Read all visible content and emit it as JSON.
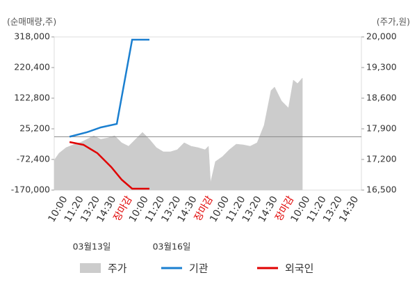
{
  "chart_data": {
    "type": "line",
    "y_axis_title": "(순매매량,주)",
    "y2_axis_title": "(주가,원)",
    "categories": [
      "10:00",
      "11:20",
      "13:20",
      "14:30",
      "장마감",
      "10:00",
      "11:20",
      "13:20",
      "14:30",
      "장마감",
      "10:00",
      "11:20",
      "13:20",
      "14:30",
      "장마감",
      "10:00",
      "11:20",
      "13:20",
      "14:30"
    ],
    "category_colors": [
      "#333",
      "#333",
      "#333",
      "#333",
      "#e00000",
      "#333",
      "#333",
      "#333",
      "#333",
      "#e00000",
      "#333",
      "#333",
      "#333",
      "#333",
      "#e00000",
      "#333",
      "#333",
      "#333",
      "#333"
    ],
    "dates": [
      "03월13일",
      "03월16일"
    ],
    "xlim": [
      -0.5,
      18.5
    ],
    "ylim": [
      -170000,
      318000
    ],
    "yticks": [
      {
        "value": -170000,
        "label": "-170,000"
      },
      {
        "value": -72400,
        "label": "-72,400"
      },
      {
        "value": 25200,
        "label": "25,200"
      },
      {
        "value": 122800,
        "label": "122,800"
      },
      {
        "value": 220400,
        "label": "220,400"
      },
      {
        "value": 318000,
        "label": "318,000"
      }
    ],
    "y2lim": [
      16500,
      20000
    ],
    "y2ticks": [
      {
        "value": 16500,
        "label": "16,500"
      },
      {
        "value": 17200,
        "label": "17,200"
      },
      {
        "value": 17900,
        "label": "17,900"
      },
      {
        "value": 18600,
        "label": "18,600"
      },
      {
        "value": 19300,
        "label": "19,300"
      },
      {
        "value": 20000,
        "label": "20,000"
      }
    ],
    "series": [
      {
        "name": "주가",
        "color": "#cccccc",
        "axis": "y2",
        "kind": "area",
        "x": [
          -0.5,
          -0.2,
          0.23,
          0.66,
          1.09,
          1.52,
          1.95,
          2.38,
          2.81,
          3.24,
          3.67,
          4.1,
          4.53,
          4.96,
          5.39,
          5.82,
          6.25,
          6.68,
          7.11,
          7.54,
          7.97,
          8.4,
          8.83,
          9.04,
          9.17,
          9.47,
          9.9,
          10.33,
          10.76,
          11.19,
          11.62,
          12.05,
          12.48,
          12.91,
          13.13,
          13.56,
          13.99,
          14.29,
          14.55,
          14.85
        ],
        "values": [
          17184,
          17343,
          17470,
          17534,
          17582,
          17661,
          17741,
          17661,
          17693,
          17741,
          17582,
          17502,
          17661,
          17820,
          17661,
          17470,
          17375,
          17375,
          17422,
          17582,
          17502,
          17470,
          17422,
          17502,
          16675,
          17152,
          17263,
          17422,
          17550,
          17534,
          17502,
          17582,
          17979,
          18775,
          18854,
          18536,
          18377,
          19014,
          18934,
          19061
        ]
      },
      {
        "name": "기관",
        "color": "#1a7fd0",
        "kind": "line",
        "x": [
          0.45,
          1.52,
          2.38,
          3.37,
          4.32,
          5.39
        ],
        "values": [
          0,
          14134,
          29660,
          40750,
          309128,
          309128
        ]
      },
      {
        "name": "외국인",
        "color": "#e00000",
        "kind": "line",
        "x": [
          0.45,
          1.31,
          2.17,
          3.03,
          3.67,
          4.32,
          5.39
        ],
        "values": [
          -16918,
          -25790,
          -52406,
          -96766,
          -136690,
          -165524,
          -165524
        ]
      }
    ]
  }
}
